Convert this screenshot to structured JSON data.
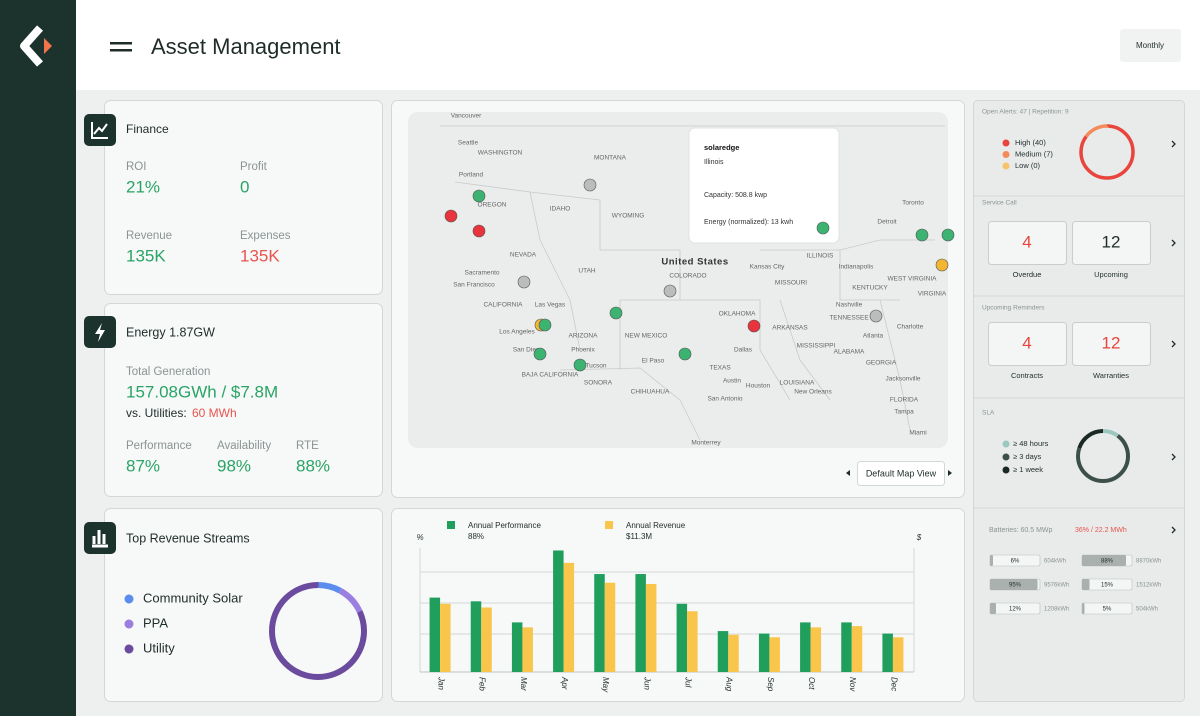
{
  "header": {
    "title": "Asset Management",
    "period": "Monthly"
  },
  "finance": {
    "title": "Finance",
    "metrics": [
      {
        "label": "ROI",
        "value": "21%"
      },
      {
        "label": "Profit",
        "value": "0"
      },
      {
        "label": "Revenue",
        "value": "135K"
      },
      {
        "label": "Expenses",
        "value": "135K"
      }
    ]
  },
  "energy": {
    "title": "Energy 1.87GW",
    "generation_label": "Total Generation",
    "generation": "157.08GWh / $7.8M",
    "comparison_label": "vs. Utilities:",
    "comparison": "60 MWh",
    "metrics": [
      {
        "label": "Performance",
        "value": "87%"
      },
      {
        "label": "Availability",
        "value": "98%"
      },
      {
        "label": "RTE",
        "value": "88%"
      }
    ]
  },
  "revenue_streams": {
    "title": "Top Revenue Streams",
    "items": [
      {
        "name": "Community Solar",
        "color": "#5b8def",
        "value": 8
      },
      {
        "name": "PPA",
        "color": "#9a7fe0",
        "value": 10
      },
      {
        "name": "Utility",
        "color": "#6b4b9e",
        "value": 82
      }
    ]
  },
  "map": {
    "country": "United States",
    "labels": [
      "Vancouver",
      "Seattle",
      "WASHINGTON",
      "Portland",
      "OREGON",
      "MONTANA",
      "IDAHO",
      "WYOMING",
      "NEVADA",
      "UTAH",
      "Sacramento",
      "San Francisco",
      "CALIFORNIA",
      "COLORADO",
      "Las Vegas",
      "Los Angeles",
      "ARIZONA",
      "NEW MEXICO",
      "San Diego",
      "Phoenix",
      "Tucson",
      "BAJA CALIFORNIA",
      "SONORA",
      "El Paso",
      "CHIHUAHUA",
      "TEXAS",
      "Austin",
      "Houston",
      "San Antonio",
      "Dallas",
      "OKLAHOMA",
      "ARKANSAS",
      "Kansas City",
      "MISSOURI",
      "ILLINOIS",
      "Indianapolis",
      "Detroit",
      "Toronto",
      "Nashville",
      "TENNESSEE",
      "Atlanta",
      "ALABAMA",
      "MISSISSIPPI",
      "LOUISIANA",
      "New Orleans",
      "Jacksonville",
      "Charlotte",
      "GEORGIA",
      "FLORIDA",
      "Tampa",
      "Miami",
      "Monterrey",
      "KENTUCKY",
      "WEST VIRGINIA",
      "VIRGINIA"
    ],
    "tooltip": {
      "brand": "solaredge",
      "region": "Illinois",
      "capacity": "Capacity: 508.8 kwp",
      "energy": "Energy (normalized): 13 kwh"
    },
    "button": "Default Map View"
  },
  "chart_data": {
    "type": "bar",
    "categories": [
      "Jan",
      "Feb",
      "Mar",
      "Apr",
      "May",
      "Jun",
      "Jul",
      "Aug",
      "Sep",
      "Oct",
      "Nov",
      "Dec"
    ],
    "y_label": "%",
    "y2_label": "$",
    "ylim": [
      0,
      100
    ],
    "y2lim": [
      0,
      100
    ],
    "series": [
      {
        "name": "Annual Performance",
        "summary": "88%",
        "color": "#1f9e5c",
        "values": [
          60,
          57,
          40,
          98,
          79,
          79,
          55,
          33,
          31,
          40,
          40,
          31
        ]
      },
      {
        "name": "Annual Revenue",
        "summary": "$11.3M",
        "color": "#f9c54a",
        "axis": "y2",
        "values": [
          55,
          52,
          36,
          88,
          72,
          71,
          49,
          30,
          28,
          36,
          37,
          28
        ]
      }
    ]
  },
  "alerts": {
    "title": "Open Alerts: 47 | Repetition: 9",
    "items": [
      {
        "label": "High (40)",
        "value": 40,
        "color": "#e8453c"
      },
      {
        "label": "Medium (7)",
        "value": 7,
        "color": "#f38b5a"
      },
      {
        "label": "Low (0)",
        "value": 0,
        "color": "#f6c36a"
      }
    ]
  },
  "service_call": {
    "title": "Service Call",
    "items": [
      {
        "value": 4,
        "label": "Overdue",
        "color": "#e8453c"
      },
      {
        "value": 12,
        "label": "Upcoming",
        "color": "#1f2d2a"
      }
    ]
  },
  "reminders": {
    "title": "Upcoming Reminders",
    "items": [
      {
        "value": 4,
        "label": "Contracts",
        "color": "#e8453c"
      },
      {
        "value": 12,
        "label": "Warranties",
        "color": "#e8453c"
      }
    ]
  },
  "sla": {
    "title": "SLA",
    "items": [
      {
        "label": "≥  48 hours",
        "value": 10,
        "color": "#9cc7bf"
      },
      {
        "label": "≥  3 days",
        "value": 70,
        "color": "#3d4f4b"
      },
      {
        "label": "≥  1 week",
        "value": 20,
        "color": "#1a2926"
      }
    ]
  },
  "batteries": {
    "title": "Batteries: 60.5 MWp",
    "summary": "36% / 22.2 MWh",
    "values": [
      6,
      88,
      95,
      15,
      12,
      5
    ],
    "value_labels": [
      "6%",
      "88%",
      "95%",
      "15%",
      "12%",
      "5%"
    ],
    "energy": [
      "604kWh",
      "8870kWh",
      "9576kWh",
      "1512kWh",
      "1208kWh",
      "504kWh"
    ]
  }
}
